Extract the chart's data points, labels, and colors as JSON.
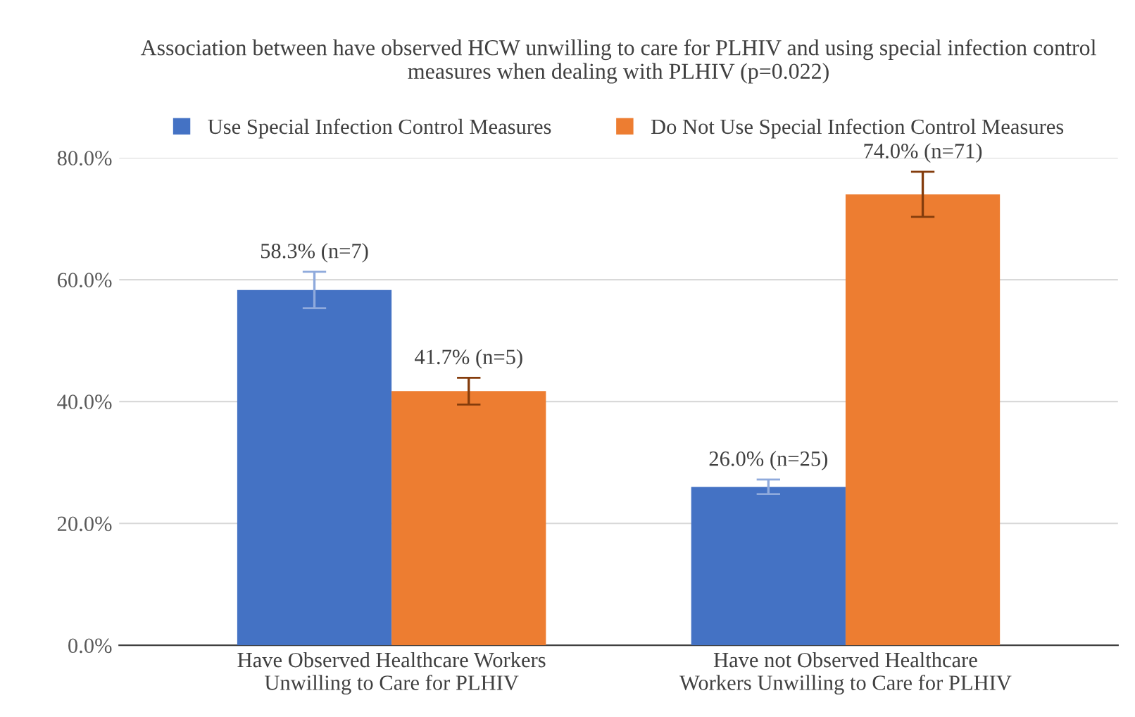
{
  "chart_data": {
    "type": "bar",
    "title": "Association between have observed HCW unwilling to care for PLHIV and using special infection control measures when dealing with PLHIV (p=0.022)",
    "categories": [
      "Have Observed Healthcare Workers\nUnwilling to Care for PLHIV",
      "Have not Observed Healthcare\nWorkers Unwilling to Care for PLHIV"
    ],
    "series": [
      {
        "name": "Use Special Infection Control Measures",
        "color": "#4472c4",
        "values": [
          58.3,
          26.0
        ],
        "errors": [
          3,
          1.2
        ],
        "value_labels": [
          "58.3% (n=7)",
          "26.0% (n=25)"
        ]
      },
      {
        "name": "Do Not Use Special Infection Control Measures",
        "color": "#ed7d31",
        "values": [
          41.7,
          74.0
        ],
        "errors": [
          2.2,
          3.7
        ],
        "value_labels": [
          "41.7% (n=5)",
          "74.0% (n=71)"
        ]
      }
    ],
    "ylim": [
      0,
      80
    ],
    "yticks": [
      {
        "value": 0,
        "label": "0.0%"
      },
      {
        "value": 20,
        "label": "20.0%"
      },
      {
        "value": 40,
        "label": "40.0%"
      },
      {
        "value": 60,
        "label": "60.0%"
      },
      {
        "value": 80,
        "label": "80.0%"
      }
    ],
    "grid": "y",
    "legend": "top"
  }
}
